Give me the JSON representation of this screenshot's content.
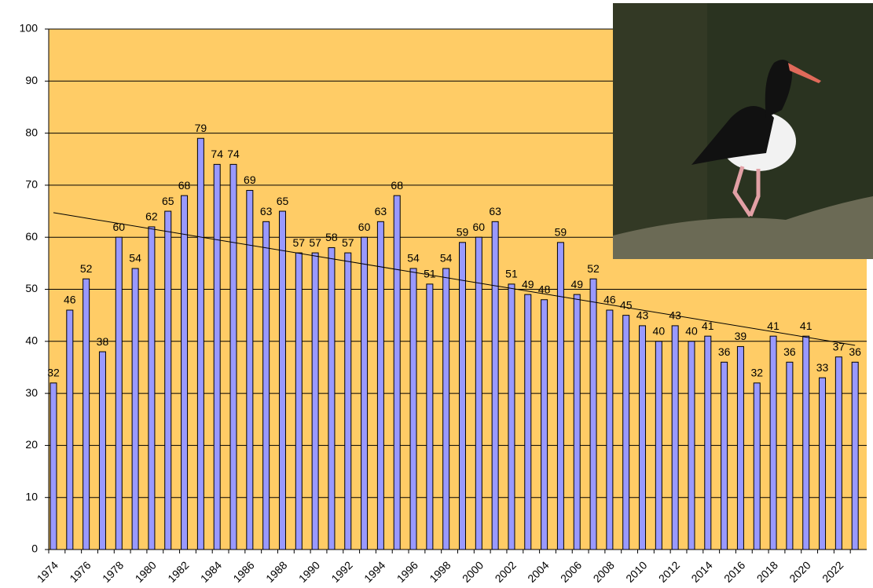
{
  "chart_data": {
    "type": "bar",
    "categories": [
      "1974",
      null,
      "1976",
      null,
      "1978",
      null,
      "1980",
      null,
      "1982",
      null,
      "1984",
      null,
      "1986",
      null,
      "1988",
      null,
      "1990",
      null,
      "1992",
      null,
      "1994",
      null,
      "1996",
      null,
      "1998",
      null,
      "2000",
      null,
      "2002",
      null,
      "2004",
      null,
      "2006",
      null,
      "2008",
      null,
      "2010",
      null,
      "2012",
      null,
      "2014",
      null,
      "2016",
      null,
      "2018",
      null,
      "2020",
      null,
      "2022",
      null
    ],
    "values": [
      32,
      46,
      52,
      38,
      60,
      54,
      62,
      65,
      68,
      79,
      74,
      74,
      69,
      63,
      65,
      57,
      57,
      58,
      57,
      60,
      63,
      68,
      54,
      51,
      54,
      59,
      60,
      63,
      51,
      49,
      48,
      59,
      49,
      52,
      46,
      45,
      43,
      40,
      43,
      40,
      41,
      36,
      39,
      32,
      41,
      36,
      41,
      33,
      37,
      36
    ],
    "color": "#9999ff",
    "ylim": [
      0,
      100
    ],
    "yticks": [
      0,
      10,
      20,
      30,
      40,
      50,
      60,
      70,
      80,
      90,
      100
    ],
    "grid": true,
    "trendline": true
  }
}
